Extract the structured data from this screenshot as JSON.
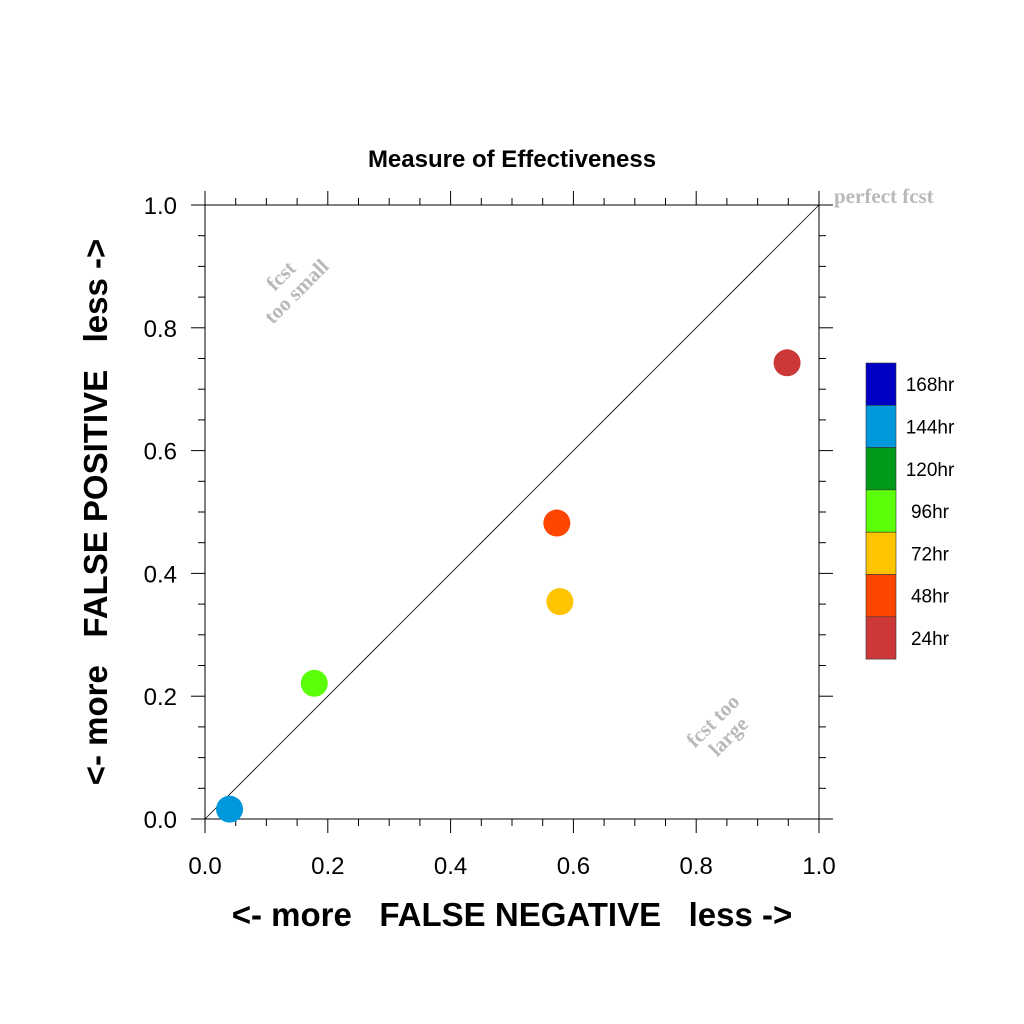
{
  "chart_data": {
    "type": "scatter",
    "title": "Measure of Effectiveness",
    "xlabel": "<- more   FALSE NEGATIVE   less ->",
    "ylabel": "<- more   FALSE POSITIVE   less ->",
    "xlim": [
      0.0,
      1.0
    ],
    "ylim": [
      0.0,
      1.0
    ],
    "x_ticks": [
      "0.0",
      "0.2",
      "0.4",
      "0.6",
      "0.8",
      "1.0"
    ],
    "y_ticks": [
      "0.0",
      "0.2",
      "0.4",
      "0.6",
      "0.8",
      "1.0"
    ],
    "grid": false,
    "reference_line": "diagonal y = x",
    "annotations": {
      "perfect": "perfect fcst",
      "small_line1": "fcst",
      "small_line2": "too small",
      "large_line1": "fcst too",
      "large_line2": "large"
    },
    "legend_position": "right",
    "legend": [
      {
        "label": "168hr",
        "color": "#0000c4"
      },
      {
        "label": "144hr",
        "color": "#0098dc"
      },
      {
        "label": "120hr",
        "color": "#009a1a"
      },
      {
        "label": "96hr",
        "color": "#5cff0a"
      },
      {
        "label": "72hr",
        "color": "#ffc400"
      },
      {
        "label": "48hr",
        "color": "#ff4600"
      },
      {
        "label": "24hr",
        "color": "#cc3838"
      }
    ],
    "points": [
      {
        "label": "144hr",
        "x": 0.04,
        "y": 0.016,
        "color": "#0098dc"
      },
      {
        "label": "96hr",
        "x": 0.178,
        "y": 0.221,
        "color": "#5cff0a"
      },
      {
        "label": "72hr",
        "x": 0.578,
        "y": 0.354,
        "color": "#ffc400"
      },
      {
        "label": "48hr",
        "x": 0.573,
        "y": 0.482,
        "color": "#ff4600"
      },
      {
        "label": "24hr",
        "x": 0.948,
        "y": 0.743,
        "color": "#cc3838"
      }
    ]
  }
}
